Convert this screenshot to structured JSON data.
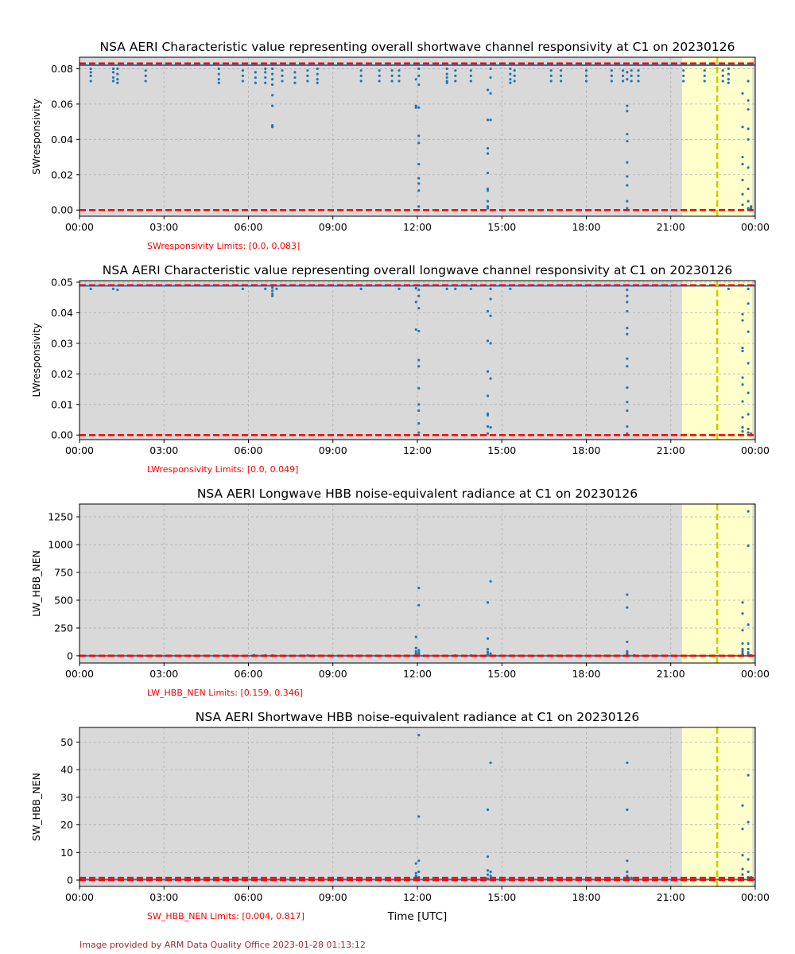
{
  "footer": "Image provided by ARM Data Quality Office 2023-01-28 01:13:12",
  "xlabel": "Time [UTC]",
  "x_tick_labels": [
    "00:00",
    "03:00",
    "06:00",
    "09:00",
    "12:00",
    "15:00",
    "18:00",
    "21:00",
    "00:00"
  ],
  "colors": {
    "background": "#d9d9d9",
    "highlight": "#ffffcc",
    "points": "#1f77b4",
    "limit_lines": "#ff0000",
    "marker_line": "#cccc00",
    "grid": "#b0b0b0"
  },
  "chart_data": [
    {
      "type": "scatter",
      "title": "NSA AERI Characteristic value representing overall shortwave channel responsivity at C1 on 20230126",
      "ylabel": "SWresponsivity",
      "limits_text": "SWresponsivity Limits: [0.0, 0.083]",
      "limits": [
        0.0,
        0.083
      ],
      "xlim": [
        0,
        24
      ],
      "ylim": [
        -0.0035,
        0.0865
      ],
      "y_ticks": [
        0.0,
        0.02,
        0.04,
        0.06,
        0.08
      ],
      "y_tick_labels": [
        "0.00",
        "0.02",
        "0.04",
        "0.06",
        "0.08"
      ],
      "highlight_hours": [
        21.4,
        23.9
      ],
      "marker_hour": 22.65,
      "baseline": 0.082,
      "clusters": [
        {
          "x": 0.4,
          "y": [
            0.073,
            0.076,
            0.078,
            0.08
          ]
        },
        {
          "x": 1.2,
          "y": [
            0.073,
            0.075,
            0.078,
            0.08
          ]
        },
        {
          "x": 1.35,
          "y": [
            0.072,
            0.074,
            0.077,
            0.08
          ]
        },
        {
          "x": 2.35,
          "y": [
            0.073,
            0.076,
            0.079
          ]
        },
        {
          "x": 4.95,
          "y": [
            0.072,
            0.074,
            0.077,
            0.08
          ]
        },
        {
          "x": 5.8,
          "y": [
            0.073,
            0.076,
            0.079
          ]
        },
        {
          "x": 6.25,
          "y": [
            0.072,
            0.075,
            0.078
          ]
        },
        {
          "x": 6.6,
          "y": [
            0.072,
            0.075,
            0.078,
            0.08
          ]
        },
        {
          "x": 6.85,
          "y": [
            0.047,
            0.048,
            0.059,
            0.065,
            0.071,
            0.074,
            0.077,
            0.08
          ]
        },
        {
          "x": 7.2,
          "y": [
            0.073,
            0.076,
            0.079
          ]
        },
        {
          "x": 7.65,
          "y": [
            0.072,
            0.075,
            0.078
          ]
        },
        {
          "x": 8.1,
          "y": [
            0.073,
            0.076,
            0.079
          ]
        },
        {
          "x": 8.45,
          "y": [
            0.072,
            0.074,
            0.077,
            0.08
          ]
        },
        {
          "x": 10.0,
          "y": [
            0.073,
            0.076,
            0.079
          ]
        },
        {
          "x": 10.65,
          "y": [
            0.073,
            0.076,
            0.079
          ]
        },
        {
          "x": 11.1,
          "y": [
            0.073,
            0.076,
            0.079
          ]
        },
        {
          "x": 11.35,
          "y": [
            0.073,
            0.076,
            0.079
          ]
        },
        {
          "x": 11.95,
          "y": [
            0.058,
            0.059,
            0.074
          ]
        },
        {
          "x": 12.05,
          "y": [
            0.002,
            0.011,
            0.015,
            0.018,
            0.026,
            0.038,
            0.042,
            0.058,
            0.071,
            0.076,
            0.08
          ]
        },
        {
          "x": 13.05,
          "y": [
            0.072,
            0.073,
            0.075,
            0.077,
            0.08
          ]
        },
        {
          "x": 13.35,
          "y": [
            0.073,
            0.076,
            0.079
          ]
        },
        {
          "x": 13.9,
          "y": [
            0.073,
            0.076,
            0.079
          ]
        },
        {
          "x": 14.5,
          "y": [
            0.001,
            0.002,
            0.005,
            0.011,
            0.012,
            0.021,
            0.032,
            0.035,
            0.051,
            0.068
          ]
        },
        {
          "x": 14.6,
          "y": [
            0.051,
            0.066,
            0.075,
            0.08
          ]
        },
        {
          "x": 15.3,
          "y": [
            0.072,
            0.074,
            0.077,
            0.08
          ]
        },
        {
          "x": 15.45,
          "y": [
            0.073,
            0.076,
            0.079
          ]
        },
        {
          "x": 16.75,
          "y": [
            0.073,
            0.076,
            0.079
          ]
        },
        {
          "x": 17.1,
          "y": [
            0.073,
            0.076,
            0.079
          ]
        },
        {
          "x": 18.0,
          "y": [
            0.073,
            0.076,
            0.079
          ]
        },
        {
          "x": 18.9,
          "y": [
            0.073,
            0.076,
            0.079
          ]
        },
        {
          "x": 19.3,
          "y": [
            0.073,
            0.076,
            0.079
          ]
        },
        {
          "x": 19.45,
          "y": [
            0.001,
            0.005,
            0.014,
            0.019,
            0.027,
            0.039,
            0.043,
            0.056,
            0.059,
            0.074,
            0.078
          ]
        },
        {
          "x": 19.6,
          "y": [
            0.073,
            0.076,
            0.079
          ]
        },
        {
          "x": 19.85,
          "y": [
            0.073,
            0.076,
            0.079
          ]
        },
        {
          "x": 21.45,
          "y": [
            0.073,
            0.076,
            0.079
          ]
        },
        {
          "x": 22.2,
          "y": [
            0.073,
            0.076,
            0.079
          ]
        },
        {
          "x": 22.85,
          "y": [
            0.073,
            0.076,
            0.079
          ]
        },
        {
          "x": 23.05,
          "y": [
            0.072,
            0.074,
            0.077,
            0.08
          ]
        },
        {
          "x": 23.55,
          "y": [
            0.003,
            0.009,
            0.017,
            0.026,
            0.03,
            0.047,
            0.066
          ]
        },
        {
          "x": 23.75,
          "y": [
            0.001,
            0.005,
            0.012,
            0.024,
            0.04,
            0.046,
            0.057,
            0.062,
            0.073
          ]
        },
        {
          "x": 23.85,
          "y": [
            0.0,
            0.001,
            0.002
          ]
        }
      ]
    },
    {
      "type": "scatter",
      "title": "NSA AERI Characteristic value representing overall longwave channel responsivity at C1 on 20230126",
      "ylabel": "LWresponsivity",
      "limits_text": "LWresponsivity Limits: [0.0, 0.049]",
      "limits": [
        0.0,
        0.049
      ],
      "xlim": [
        0,
        24
      ],
      "ylim": [
        -0.0015,
        0.0505
      ],
      "y_ticks": [
        0.0,
        0.01,
        0.02,
        0.03,
        0.04,
        0.05
      ],
      "y_tick_labels": [
        "0.00",
        "0.01",
        "0.02",
        "0.03",
        "0.04",
        "0.05"
      ],
      "highlight_hours": [
        21.4,
        23.9
      ],
      "marker_hour": 22.65,
      "baseline": 0.0488,
      "clusters": [
        {
          "x": 0.4,
          "y": [
            0.0478
          ]
        },
        {
          "x": 1.2,
          "y": [
            0.0478
          ]
        },
        {
          "x": 1.35,
          "y": [
            0.0475
          ]
        },
        {
          "x": 5.8,
          "y": [
            0.0478
          ]
        },
        {
          "x": 6.6,
          "y": [
            0.0478
          ]
        },
        {
          "x": 6.85,
          "y": [
            0.0455,
            0.0462,
            0.0472,
            0.0482
          ]
        },
        {
          "x": 7.0,
          "y": [
            0.0478
          ]
        },
        {
          "x": 10.0,
          "y": [
            0.0478
          ]
        },
        {
          "x": 11.35,
          "y": [
            0.0478
          ]
        },
        {
          "x": 11.95,
          "y": [
            0.0345,
            0.0435,
            0.048
          ]
        },
        {
          "x": 12.05,
          "y": [
            0.0008,
            0.0038,
            0.008,
            0.01,
            0.0153,
            0.0225,
            0.0245,
            0.034,
            0.0415,
            0.0455,
            0.0475
          ]
        },
        {
          "x": 13.05,
          "y": [
            0.0478
          ]
        },
        {
          "x": 13.35,
          "y": [
            0.0478
          ]
        },
        {
          "x": 13.9,
          "y": [
            0.0478
          ]
        },
        {
          "x": 14.5,
          "y": [
            0.0005,
            0.0028,
            0.0065,
            0.007,
            0.0128,
            0.0208,
            0.0308,
            0.0405
          ]
        },
        {
          "x": 14.6,
          "y": [
            0.0025,
            0.0185,
            0.03,
            0.039,
            0.0445,
            0.0478
          ]
        },
        {
          "x": 15.3,
          "y": [
            0.0478
          ]
        },
        {
          "x": 19.45,
          "y": [
            0.0005,
            0.0028,
            0.008,
            0.0108,
            0.0155,
            0.0225,
            0.025,
            0.033,
            0.035,
            0.0405,
            0.0435,
            0.0455,
            0.0475
          ]
        },
        {
          "x": 23.05,
          "y": [
            0.0478
          ]
        },
        {
          "x": 23.55,
          "y": [
            0.0012,
            0.0025,
            0.0058,
            0.011,
            0.0165,
            0.0188,
            0.0275,
            0.0285,
            0.0375,
            0.0395
          ]
        },
        {
          "x": 23.75,
          "y": [
            0.0008,
            0.002,
            0.0068,
            0.0138,
            0.0235,
            0.0338,
            0.043,
            0.0478
          ]
        },
        {
          "x": 23.85,
          "y": [
            0.0,
            0.0005
          ]
        }
      ]
    },
    {
      "type": "scatter",
      "title": "NSA AERI Longwave HBB noise-equivalent radiance at C1 on 20230126",
      "ylabel": "LW_HBB_NEN",
      "limits_text": "LW_HBB_NEN Limits: [0.159, 0.346]",
      "limits": [
        0.159,
        0.346
      ],
      "xlim": [
        0,
        24
      ],
      "ylim": [
        -65,
        1365
      ],
      "y_ticks": [
        0,
        250,
        500,
        750,
        1000,
        1250
      ],
      "y_tick_labels": [
        "0",
        "250",
        "500",
        "750",
        "1000",
        "1250"
      ],
      "highlight_hours": [
        21.4,
        23.9
      ],
      "marker_hour": 22.65,
      "baseline": 0.3,
      "clusters": [
        {
          "x": 6.2,
          "y": [
            6
          ]
        },
        {
          "x": 6.6,
          "y": [
            4
          ]
        },
        {
          "x": 6.85,
          "y": [
            3
          ]
        },
        {
          "x": 8.1,
          "y": [
            4
          ]
        },
        {
          "x": 11.95,
          "y": [
            8,
            20,
            40,
            70,
            170
          ]
        },
        {
          "x": 12.05,
          "y": [
            2,
            12,
            30,
            50,
            455,
            610
          ]
        },
        {
          "x": 13.35,
          "y": [
            3
          ]
        },
        {
          "x": 13.9,
          "y": [
            3
          ]
        },
        {
          "x": 14.5,
          "y": [
            5,
            15,
            35,
            60,
            155,
            480
          ]
        },
        {
          "x": 14.6,
          "y": [
            3,
            20,
            670
          ]
        },
        {
          "x": 19.45,
          "y": [
            3,
            15,
            25,
            40,
            125,
            435,
            550
          ]
        },
        {
          "x": 19.7,
          "y": [
            4
          ]
        },
        {
          "x": 23.55,
          "y": [
            8,
            20,
            40,
            60,
            110,
            230,
            380,
            480
          ]
        },
        {
          "x": 23.75,
          "y": [
            10,
            30,
            60,
            110,
            280,
            990,
            1300
          ]
        },
        {
          "x": 23.85,
          "y": [
            2,
            5
          ]
        }
      ]
    },
    {
      "type": "scatter",
      "title": "NSA AERI Shortwave HBB noise-equivalent radiance at C1 on 20230126",
      "ylabel": "SW_HBB_NEN",
      "limits_text": "SW_HBB_NEN Limits: [0.004, 0.817]",
      "limits": [
        0.004,
        0.817
      ],
      "xlim": [
        0,
        24
      ],
      "ylim": [
        -2.3,
        55.3
      ],
      "y_ticks": [
        0,
        10,
        20,
        30,
        40,
        50
      ],
      "y_tick_labels": [
        "0",
        "10",
        "20",
        "30",
        "40",
        "50"
      ],
      "highlight_hours": [
        21.4,
        23.9
      ],
      "marker_hour": 22.65,
      "baseline": 0.2,
      "clusters": [
        {
          "x": 11.95,
          "y": [
            0.5,
            1.5,
            2.5,
            6
          ]
        },
        {
          "x": 12.05,
          "y": [
            1,
            3,
            7,
            23,
            52.5
          ]
        },
        {
          "x": 14.5,
          "y": [
            0.5,
            2,
            3.5,
            8.5,
            25.5
          ]
        },
        {
          "x": 14.6,
          "y": [
            1.5,
            3,
            42.5
          ]
        },
        {
          "x": 19.45,
          "y": [
            0.5,
            1.5,
            3,
            7,
            25.5,
            42.5
          ]
        },
        {
          "x": 19.6,
          "y": [
            0.8
          ]
        },
        {
          "x": 23.55,
          "y": [
            0.5,
            2,
            4,
            9,
            18.5,
            27
          ]
        },
        {
          "x": 23.75,
          "y": [
            1,
            3,
            7.5,
            21,
            38
          ]
        },
        {
          "x": 23.85,
          "y": [
            0.3,
            1
          ]
        }
      ]
    }
  ]
}
